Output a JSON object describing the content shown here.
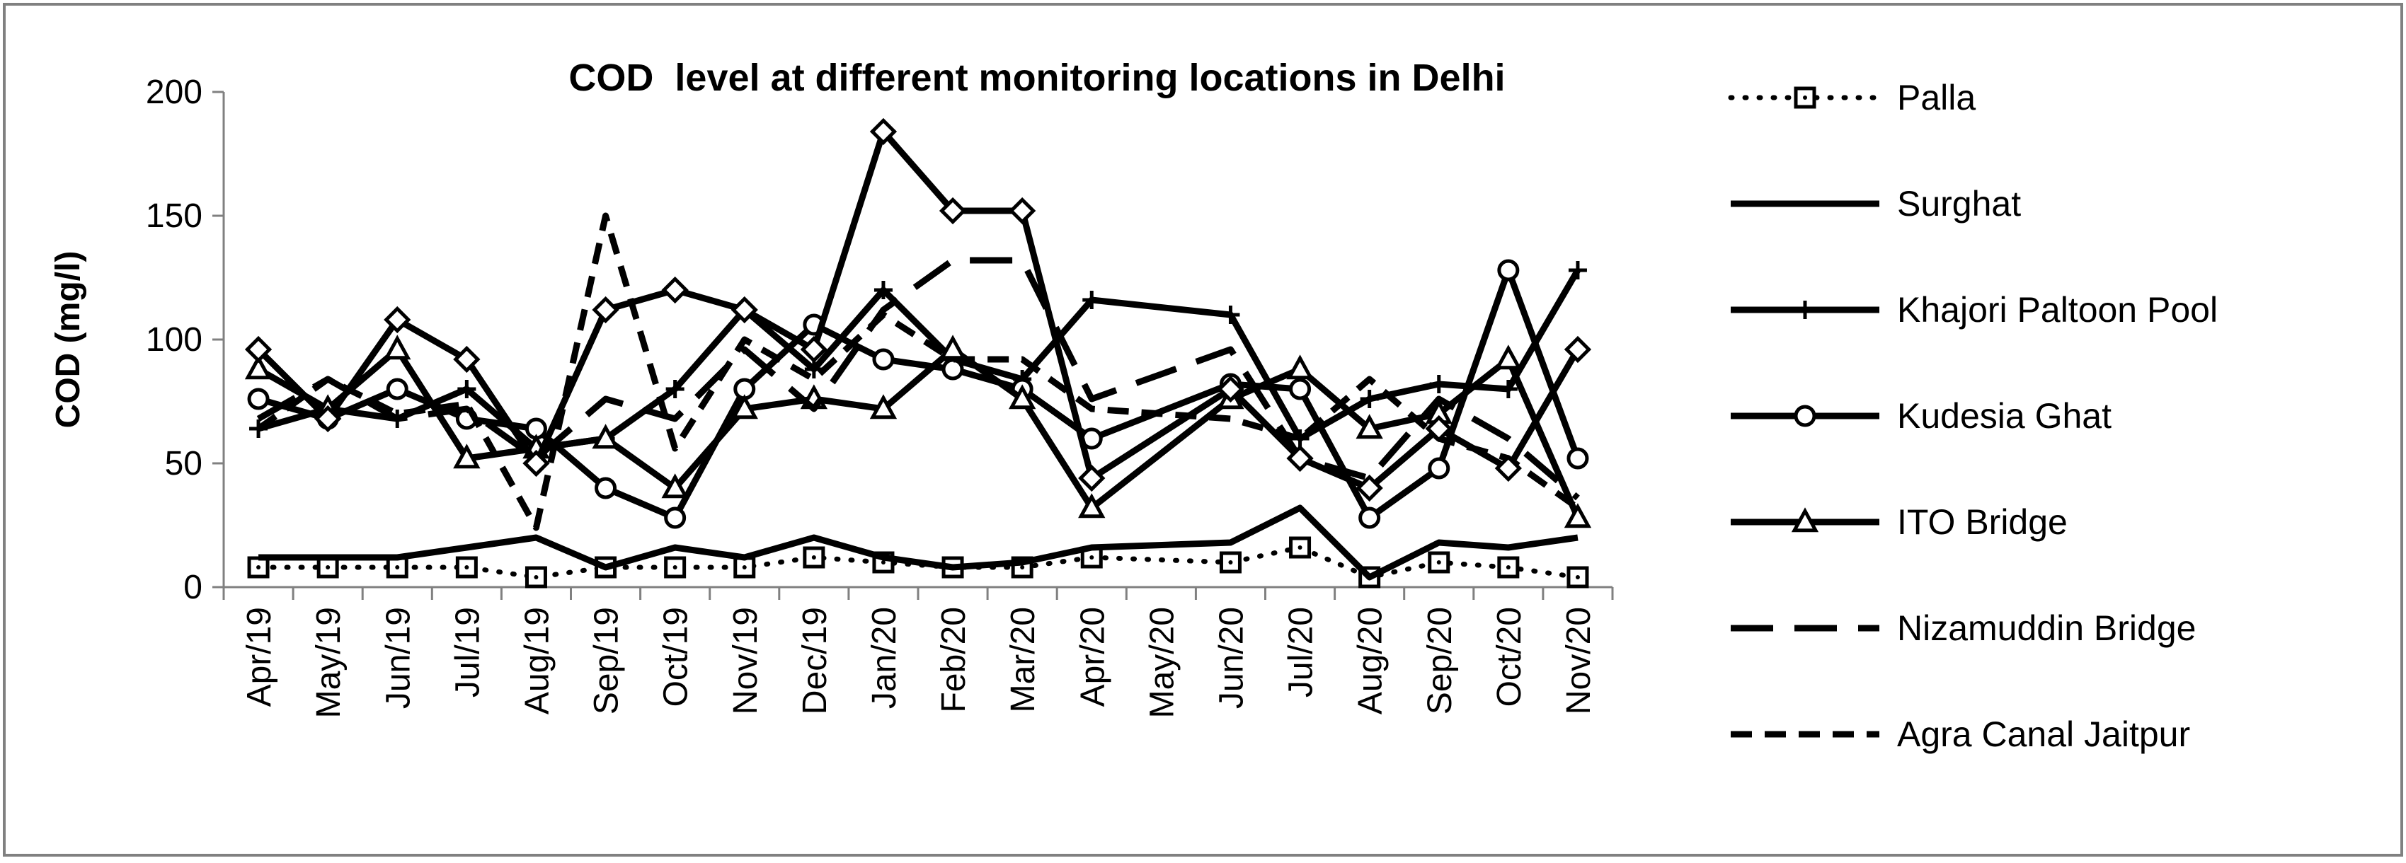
{
  "chart_data": {
    "type": "line",
    "title": "COD  level at different monitoring locations in Delhi",
    "xlabel": "",
    "ylabel": "COD (mg/l)",
    "ylim": [
      0,
      200
    ],
    "yticks": [
      0,
      50,
      100,
      150,
      200
    ],
    "grid": false,
    "legend_position": "right",
    "categories": [
      "Apr/19",
      "May/19",
      "Jun/19",
      "Jul/19",
      "Aug/19",
      "Sep/19",
      "Oct/19",
      "Nov/19",
      "Dec/19",
      "Jan/20",
      "Feb/20",
      "Mar/20",
      "Apr/20",
      "May/20",
      "Jun/20",
      "Jul/20",
      "Aug/20",
      "Sep/20",
      "Oct/20",
      "Nov/20"
    ],
    "series": [
      {
        "name": "Palla",
        "line_style": "dotted",
        "marker": "square",
        "values": [
          8,
          8,
          8,
          8,
          4,
          8,
          8,
          8,
          12,
          10,
          8,
          8,
          12,
          null,
          10,
          16,
          4,
          10,
          8,
          4
        ]
      },
      {
        "name": "Surghat",
        "line_style": "solid",
        "marker": "none",
        "values": [
          12,
          12,
          12,
          16,
          20,
          8,
          16,
          12,
          20,
          12,
          8,
          10,
          16,
          null,
          18,
          32,
          4,
          18,
          16,
          20
        ]
      },
      {
        "name": "Khajori Paltoon Pool",
        "line_style": "solid",
        "marker": "plus",
        "values": [
          64,
          72,
          68,
          80,
          56,
          60,
          80,
          112,
          88,
          120,
          92,
          84,
          116,
          null,
          110,
          60,
          76,
          82,
          80,
          128
        ]
      },
      {
        "name": "Kudesia Ghat",
        "line_style": "solid",
        "marker": "circle",
        "values": [
          76,
          68,
          80,
          68,
          64,
          40,
          28,
          80,
          106,
          92,
          88,
          80,
          60,
          null,
          82,
          80,
          28,
          48,
          128,
          52
        ]
      },
      {
        "name": "ITO Bridge",
        "line_style": "solid",
        "marker": "triangle",
        "values": [
          88,
          72,
          96,
          52,
          56,
          60,
          40,
          72,
          76,
          72,
          96,
          76,
          32,
          null,
          76,
          88,
          64,
          70,
          92,
          28
        ]
      },
      {
        "name": "Nizamuddin Bridge",
        "line_style": "longdash",
        "marker": "none",
        "values": [
          68,
          84,
          68,
          72,
          52,
          76,
          68,
          96,
          72,
          112,
          132,
          132,
          76,
          null,
          96,
          52,
          44,
          76,
          60,
          36
        ]
      },
      {
        "name": "Agra Canal Jaitpur",
        "line_style": "shortdash",
        "marker": "none",
        "values": [
          64,
          84,
          70,
          74,
          24,
          150,
          56,
          100,
          84,
          110,
          92,
          92,
          72,
          null,
          68,
          60,
          84,
          60,
          52,
          32
        ]
      },
      {
        "name": "",
        "line_style": "solid",
        "marker": "diamond",
        "values": [
          96,
          68,
          108,
          92,
          50,
          112,
          120,
          112,
          96,
          184,
          152,
          152,
          44,
          null,
          80,
          52,
          40,
          64,
          48,
          96
        ]
      }
    ]
  }
}
